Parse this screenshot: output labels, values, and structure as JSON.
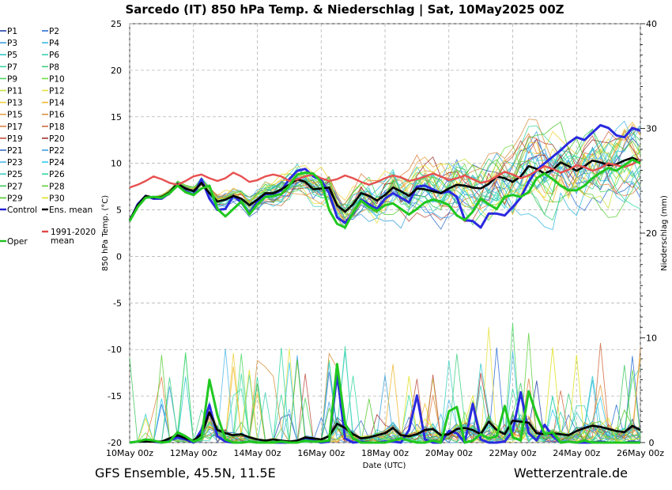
{
  "title": "Sarcedo  (IT)  850 hPa Temp. & Niederschlag | Sat, 10May2025 00Z",
  "footer_left": "GFS Ensemble, 45.5N, 11.5E",
  "footer_right": "Wetterzentrale.de",
  "chart_data": {
    "type": "line",
    "title": "Sarcedo  (IT)  850 hPa Temp. & Niederschlag | Sat, 10May2025 00Z",
    "xlabel": "Date (UTC)",
    "ylabel": "850 hPa Temp. (°C)",
    "y2label": "Niederschlag (mm)",
    "x_ticks": [
      "10May 00z",
      "12May 00z",
      "14May 00z",
      "16May 00z",
      "18May 00z",
      "20May 00z",
      "22May 00z",
      "24May 00z",
      "26May 00z"
    ],
    "x_range_hours": [
      0,
      384
    ],
    "step_hours": 6,
    "ylim": [
      -20,
      25
    ],
    "y_ticks": [
      25,
      20,
      15,
      10,
      5,
      0,
      -5,
      -10,
      -15,
      -20
    ],
    "y2lim": [
      0,
      40
    ],
    "y2_ticks": [
      40,
      30,
      20,
      10,
      0
    ],
    "grid": true,
    "legend_placement": "left",
    "legend": [
      {
        "label": "P1",
        "color": "#1f3fa8"
      },
      {
        "label": "P2",
        "color": "#2a6fd6"
      },
      {
        "label": "P3",
        "color": "#3aa0d8"
      },
      {
        "label": "P4",
        "color": "#38b8e0"
      },
      {
        "label": "P5",
        "color": "#2ec8c8"
      },
      {
        "label": "P6",
        "color": "#3ad0b0"
      },
      {
        "label": "P7",
        "color": "#3ad8a0"
      },
      {
        "label": "P8",
        "color": "#40d080"
      },
      {
        "label": "P9",
        "color": "#4ad860"
      },
      {
        "label": "P10",
        "color": "#6ae040"
      },
      {
        "label": "P11",
        "color": "#c8e040"
      },
      {
        "label": "P12",
        "color": "#e8e040"
      },
      {
        "label": "P13",
        "color": "#f0d040"
      },
      {
        "label": "P14",
        "color": "#f0b830"
      },
      {
        "label": "P15",
        "color": "#e8a040"
      },
      {
        "label": "P16",
        "color": "#d89040"
      },
      {
        "label": "P17",
        "color": "#e08040"
      },
      {
        "label": "P18",
        "color": "#d06840"
      },
      {
        "label": "P19",
        "color": "#c05040"
      },
      {
        "label": "P20",
        "color": "#a03030"
      },
      {
        "label": "P21",
        "color": "#3a70c8"
      },
      {
        "label": "P22",
        "color": "#40a0e8"
      },
      {
        "label": "P23",
        "color": "#50b8e8"
      },
      {
        "label": "P24",
        "color": "#30c8f0"
      },
      {
        "label": "P25",
        "color": "#40d0c0"
      },
      {
        "label": "P26",
        "color": "#30d8a0"
      },
      {
        "label": "P27",
        "color": "#40c860"
      },
      {
        "label": "P28",
        "color": "#60d040"
      },
      {
        "label": "P29",
        "color": "#50c830"
      },
      {
        "label": "P30",
        "color": "#e0e020"
      },
      {
        "label": "Control",
        "color": "#2020d0"
      },
      {
        "label": "Ens. mean",
        "color": "#000000"
      },
      {
        "label": "1991-2020 mean",
        "color": "#e04848"
      },
      {
        "label": "Oper",
        "color": "#20c020"
      }
    ],
    "series": [
      {
        "name": "Control",
        "axis": "temp",
        "color": "#2a2ae0",
        "width": 3,
        "values": [
          3.8,
          5.6,
          6.5,
          6.2,
          6.2,
          6.8,
          7.8,
          7.0,
          6.6,
          8.3,
          6.2,
          5.0,
          5.1,
          6.5,
          5.8,
          4.6,
          5.9,
          6.7,
          6.7,
          7.1,
          8.3,
          9.2,
          9.4,
          8.6,
          8.2,
          6.8,
          4.2,
          3.6,
          4.6,
          6.1,
          5.6,
          5.1,
          6.2,
          6.8,
          6.3,
          5.8,
          7.5,
          7.6,
          7.2,
          6.8,
          7.0,
          6.4,
          3.9,
          3.8,
          3.1,
          4.6,
          4.6,
          4.4,
          5.3,
          6.3,
          8.0,
          9.3,
          10.0,
          10.7,
          11.4,
          12.2,
          12.8,
          12.5,
          13.3,
          14.1,
          13.8,
          13.0,
          12.8,
          13.8,
          13.5
        ]
      },
      {
        "name": "Ens. mean",
        "axis": "temp",
        "color": "#000000",
        "width": 2.6,
        "values": [
          3.9,
          5.5,
          6.5,
          6.3,
          6.4,
          6.9,
          7.8,
          7.3,
          7.0,
          7.9,
          6.8,
          5.9,
          6.1,
          6.5,
          6.2,
          5.5,
          6.1,
          6.8,
          6.8,
          7.2,
          7.7,
          8.3,
          8.0,
          7.2,
          7.3,
          7.4,
          5.5,
          4.8,
          5.6,
          6.8,
          6.5,
          6.0,
          6.6,
          7.4,
          7.0,
          6.5,
          7.3,
          7.2,
          7.0,
          6.8,
          7.3,
          7.7,
          7.6,
          7.4,
          7.3,
          7.8,
          8.6,
          8.4,
          8.0,
          8.6,
          9.7,
          9.4,
          8.9,
          9.3,
          10.1,
          9.7,
          9.2,
          9.7,
          10.3,
          10.1,
          9.8,
          9.9,
          10.3,
          10.6,
          10.2
        ]
      },
      {
        "name": "1991-2020 mean",
        "axis": "temp",
        "color": "#e85050",
        "width": 2.4,
        "values": [
          7.4,
          7.7,
          8.1,
          8.6,
          8.3,
          7.9,
          7.7,
          8.1,
          8.6,
          8.8,
          8.4,
          8.1,
          8.4,
          9.0,
          8.6,
          8.0,
          8.2,
          8.6,
          8.8,
          8.6,
          8.1,
          8.3,
          8.6,
          8.8,
          8.4,
          8.1,
          8.3,
          8.7,
          8.4,
          8.0,
          7.7,
          8.0,
          8.4,
          8.7,
          8.5,
          8.1,
          8.3,
          8.6,
          8.9,
          8.6,
          8.2,
          8.4,
          8.7,
          8.3,
          7.9,
          8.1,
          8.6,
          9.1,
          8.8,
          8.4,
          8.7,
          9.2,
          9.7,
          9.4,
          9.0,
          9.3,
          9.8,
          9.6,
          9.2,
          9.5,
          10.0,
          9.8,
          9.6,
          9.9,
          10.4
        ]
      },
      {
        "name": "Oper",
        "axis": "temp",
        "color": "#20c820",
        "width": 3,
        "values": [
          3.8,
          5.3,
          6.3,
          6.4,
          6.3,
          6.8,
          7.6,
          6.9,
          6.6,
          7.3,
          7.6,
          5.1,
          4.3,
          5.1,
          5.9,
          4.5,
          5.6,
          6.4,
          6.5,
          6.7,
          7.6,
          8.8,
          9.0,
          8.9,
          8.0,
          5.0,
          3.5,
          3.1,
          4.7,
          6.0,
          5.3,
          4.9,
          5.5,
          5.7,
          5.1,
          4.5,
          5.1,
          5.8,
          6.1,
          5.9,
          5.5,
          4.4,
          3.9,
          4.8,
          6.2,
          5.6,
          5.1,
          6.4,
          6.6,
          6.4,
          6.9,
          8.4,
          8.9,
          8.3,
          7.6,
          7.1,
          7.1,
          7.6,
          8.4,
          9.0,
          9.5,
          9.2,
          9.8,
          10.4,
          10.0
        ]
      },
      {
        "name": "Control",
        "axis": "precip",
        "color": "#2a2ae0",
        "width": 3,
        "values": [
          0.0,
          0.1,
          0.2,
          0.1,
          0.0,
          0.2,
          0.5,
          0.3,
          0.0,
          1.2,
          3.6,
          0.6,
          0.1,
          0.0,
          0.0,
          0.1,
          0.0,
          0.0,
          0.0,
          0.0,
          0.0,
          0.1,
          0.3,
          0.2,
          0.0,
          0.1,
          6.5,
          0.4,
          0.0,
          0.1,
          0.0,
          0.0,
          0.1,
          0.1,
          0.0,
          1.2,
          4.5,
          0.3,
          0.0,
          0.0,
          1.1,
          0.9,
          0.0,
          3.7,
          0.3,
          0.0,
          0.0,
          0.1,
          1.1,
          4.8,
          0.9,
          0.2,
          1.7,
          0.6,
          0.0,
          0.1,
          0.0,
          0.0,
          0.0,
          0.1,
          0.0,
          0.0,
          0.0,
          0.1,
          0.0
        ]
      },
      {
        "name": "Ens. mean",
        "axis": "precip",
        "color": "#000000",
        "width": 2.6,
        "values": [
          0.0,
          0.1,
          0.1,
          0.1,
          0.1,
          0.4,
          0.7,
          0.4,
          0.2,
          0.8,
          2.9,
          1.2,
          0.9,
          0.7,
          0.8,
          0.5,
          0.3,
          0.2,
          0.3,
          0.2,
          0.1,
          0.2,
          0.5,
          0.4,
          0.3,
          0.6,
          1.8,
          1.4,
          0.8,
          0.4,
          0.5,
          0.7,
          0.9,
          1.4,
          0.7,
          0.6,
          0.8,
          1.2,
          1.3,
          0.7,
          0.8,
          1.3,
          1.4,
          1.2,
          0.8,
          2.0,
          1.2,
          0.8,
          2.1,
          2.0,
          1.9,
          0.9,
          0.8,
          0.9,
          0.8,
          0.7,
          1.1,
          1.4,
          1.6,
          1.5,
          1.3,
          1.1,
          1.0,
          1.6,
          1.2
        ]
      },
      {
        "name": "Oper",
        "axis": "precip",
        "color": "#20c820",
        "width": 3,
        "values": [
          0.0,
          0.1,
          0.3,
          0.2,
          0.0,
          0.1,
          1.0,
          0.6,
          0.1,
          0.4,
          6.0,
          2.6,
          0.3,
          0.0,
          0.0,
          0.1,
          0.0,
          0.0,
          0.0,
          0.1,
          0.0,
          0.0,
          0.2,
          0.1,
          0.1,
          0.2,
          7.5,
          1.8,
          0.4,
          0.0,
          0.0,
          0.0,
          0.0,
          0.2,
          0.4,
          0.2,
          0.0,
          0.0,
          0.2,
          0.0,
          3.0,
          3.4,
          0.0,
          0.2,
          0.8,
          0.4,
          0.6,
          3.5,
          0.5,
          0.2,
          4.9,
          2.6,
          0.8,
          1.0,
          0.0,
          0.1,
          0.0,
          0.2,
          0.0,
          0.0,
          0.0,
          0.0,
          0.0,
          0.0,
          0.0
        ]
      }
    ]
  }
}
